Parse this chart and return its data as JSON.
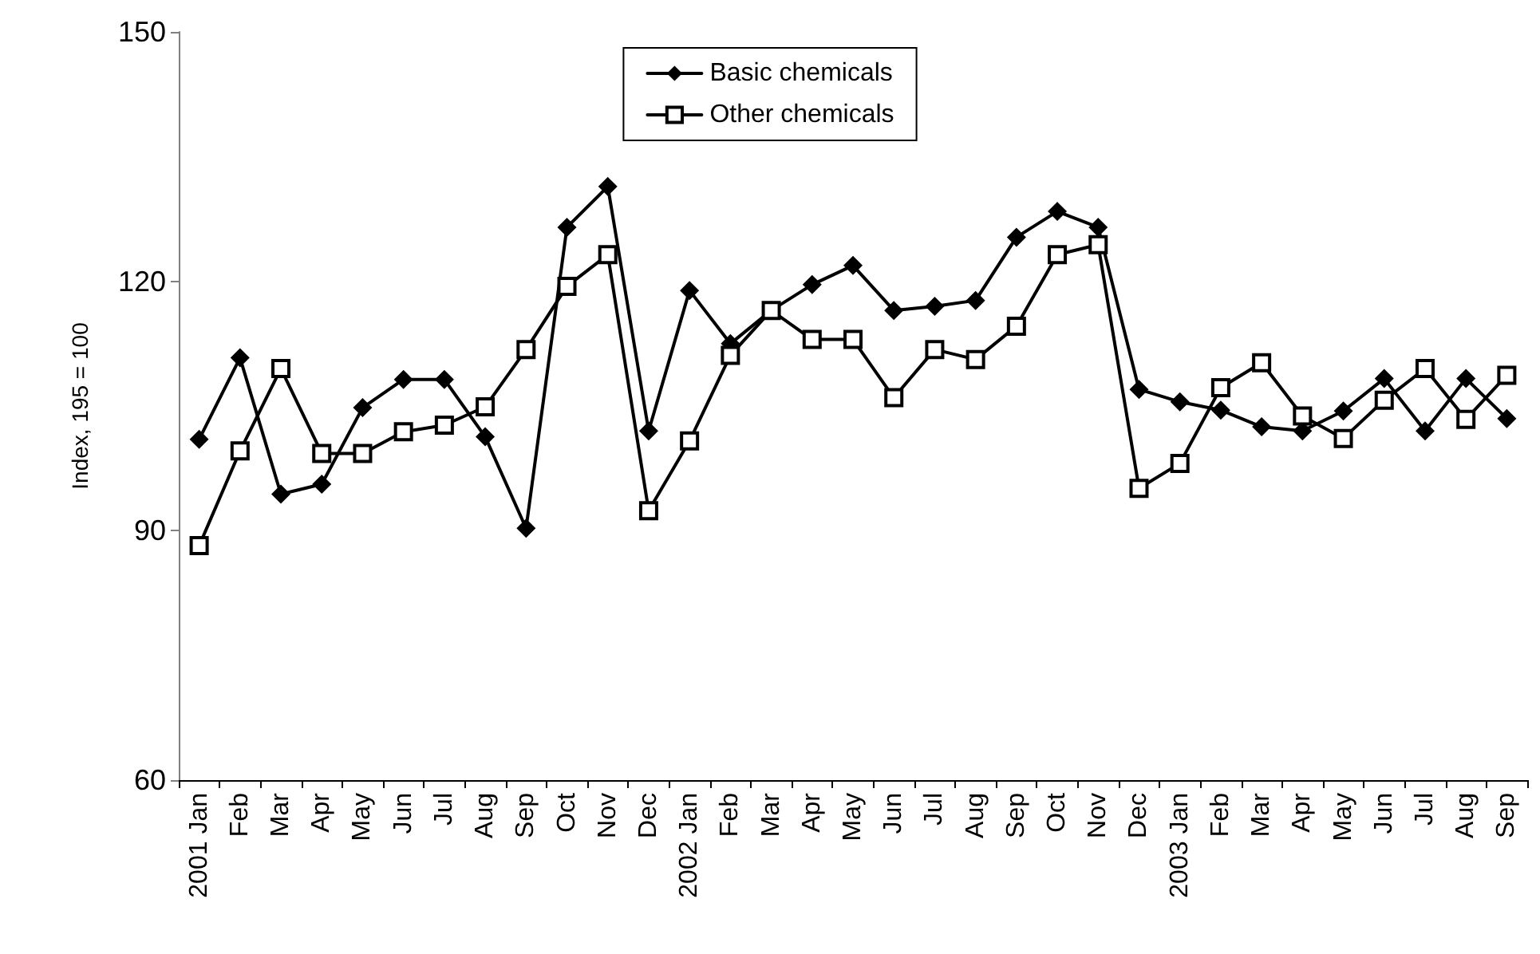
{
  "chart_data": {
    "type": "line",
    "ylabel": "Index, 195 = 100",
    "categories": [
      "2001 Jan",
      "Feb",
      "Mar",
      "Apr",
      "May",
      "Jun",
      "Jul",
      "Aug",
      "Sep",
      "Oct",
      "Nov",
      "Dec",
      "2002 Jan",
      "Feb",
      "Mar",
      "Apr",
      "May",
      "Jun",
      "Jul",
      "Aug",
      "Sep",
      "Oct",
      "Nov",
      "Dec",
      "2003 Jan",
      "Feb",
      "Mar",
      "Apr",
      "May",
      "Jun",
      "Jul",
      "Aug",
      "Sep"
    ],
    "series": [
      {
        "name": "Basic chemicals",
        "color": "#000000",
        "marker": "diamond",
        "values": [
          101.0,
          110.8,
          94.4,
          95.6,
          104.8,
          108.2,
          108.2,
          101.3,
          90.3,
          126.5,
          131.4,
          102.0,
          118.9,
          112.5,
          116.5,
          119.6,
          121.9,
          116.5,
          117.0,
          117.7,
          125.3,
          128.4,
          126.5,
          107.0,
          105.5,
          104.5,
          102.5,
          102.0,
          104.4,
          108.3,
          102.0,
          108.3,
          103.5
        ]
      },
      {
        "name": "Other chemicals",
        "color": "#000000",
        "marker": "square",
        "values": [
          88.2,
          99.6,
          109.5,
          99.3,
          99.3,
          101.9,
          102.7,
          104.9,
          111.8,
          119.4,
          123.2,
          92.4,
          100.8,
          111.1,
          116.5,
          113.0,
          113.0,
          106.0,
          111.8,
          110.6,
          114.6,
          123.2,
          124.4,
          95.1,
          98.1,
          107.2,
          110.2,
          103.8,
          101.1,
          105.7,
          109.5,
          103.4,
          108.7
        ]
      }
    ],
    "ylim": [
      60,
      150
    ],
    "yticks": [
      60,
      90,
      120,
      150
    ],
    "grid": false,
    "legend": "top",
    "line_style": "solid"
  }
}
